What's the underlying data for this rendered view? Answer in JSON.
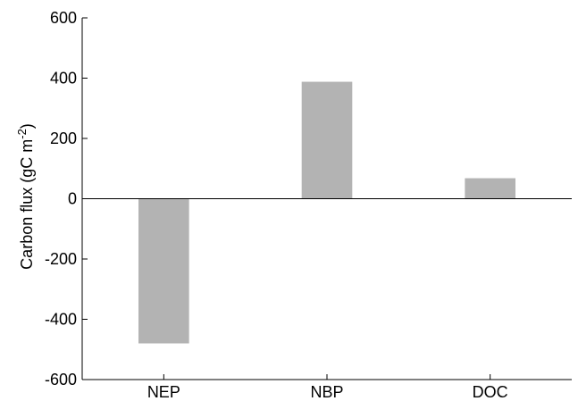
{
  "chart_data": {
    "type": "bar",
    "categories": [
      "NEP",
      "NBP",
      "DOC"
    ],
    "values": [
      -480,
      388,
      68
    ],
    "title": "",
    "xlabel": "",
    "ylabel": {
      "text": "Carbon flux (gC m",
      "superscript": "-2",
      "suffix": ")"
    },
    "ylim": [
      -600,
      600
    ],
    "yticks": [
      -600,
      -400,
      -200,
      0,
      200,
      400,
      600
    ],
    "ytick_labels": [
      "-600",
      "-400",
      "-200",
      "0",
      "200",
      "400",
      "600"
    ],
    "grid": false,
    "bar_color": "#b3b3b3",
    "axis_color": "#000000"
  }
}
